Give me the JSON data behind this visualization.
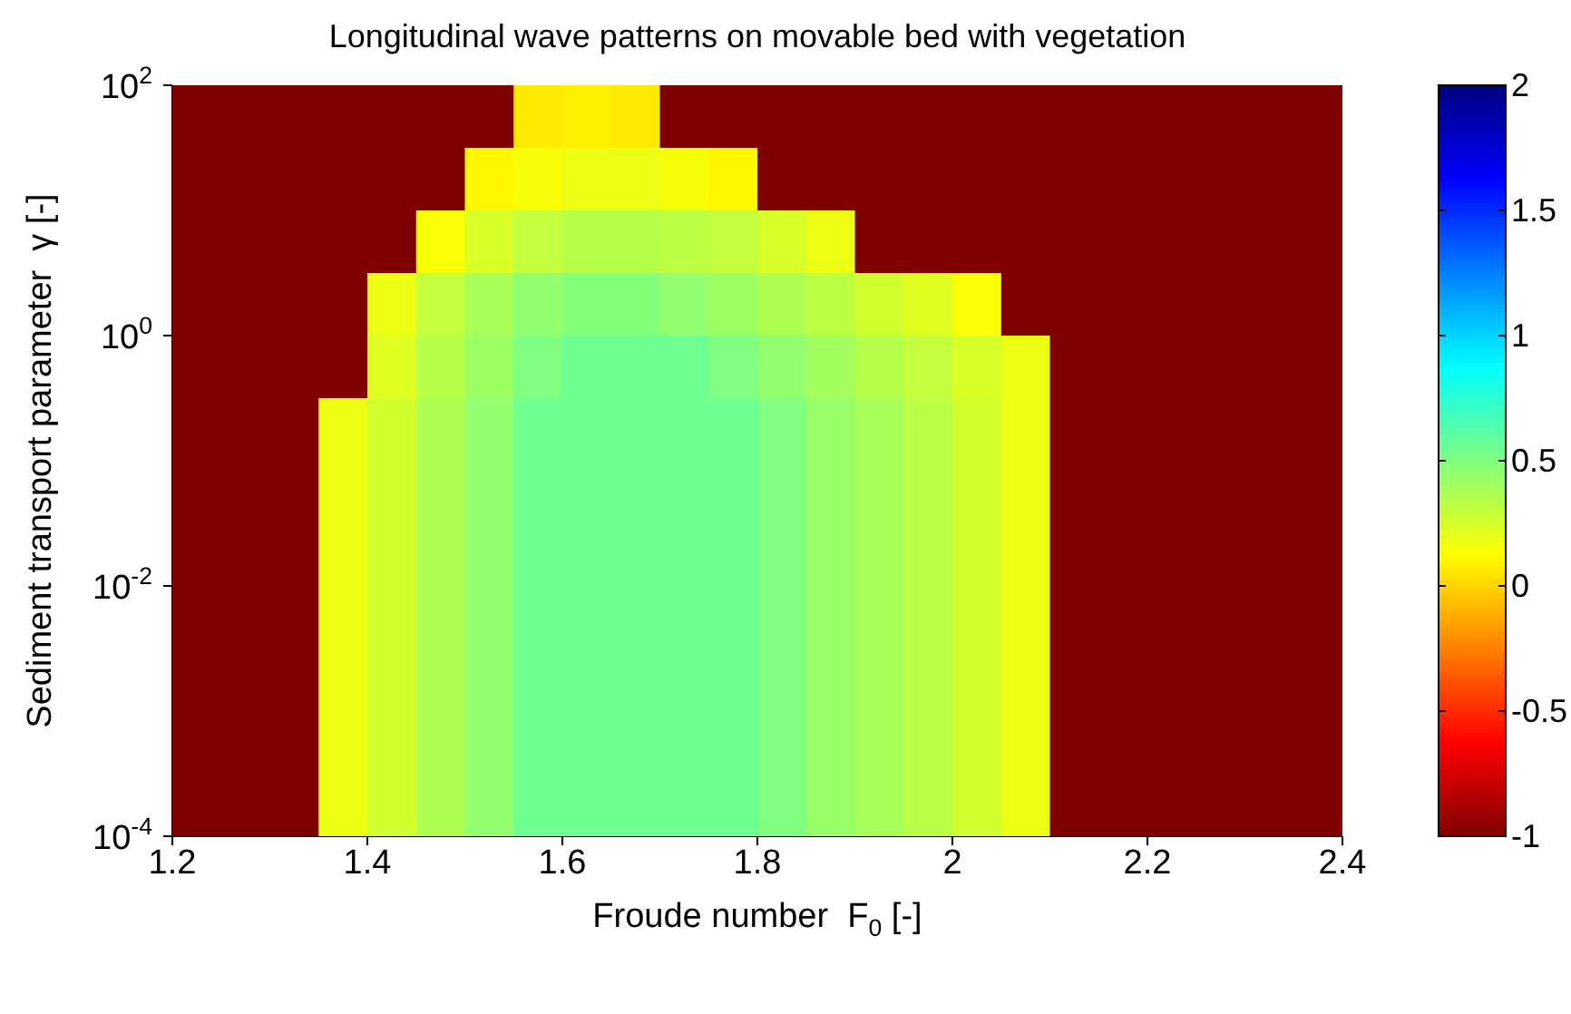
{
  "chart_data": {
    "type": "heatmap",
    "title": "Longitudinal wave patterns on movable bed with vegetation",
    "xlabel": "Froude number  F$_{0}$ [-]",
    "ylabel": "Sediment transport parameter  γ [-]",
    "x": [
      1.225,
      1.275,
      1.325,
      1.375,
      1.425,
      1.475,
      1.525,
      1.575,
      1.625,
      1.675,
      1.725,
      1.775,
      1.825,
      1.875,
      1.925,
      1.975,
      2.025,
      2.075,
      2.125,
      2.175,
      2.225,
      2.275,
      2.325,
      2.375
    ],
    "xlim": [
      1.2,
      2.4
    ],
    "xticks": [
      1.2,
      1.4,
      1.6,
      1.8,
      2,
      2.2,
      2.4
    ],
    "ylim": [
      0.0001,
      100
    ],
    "yticks": [
      {
        "value": 0.0001,
        "label": "10$^{-4}$"
      },
      {
        "value": 0.01,
        "label": "10$^{-2}$"
      },
      {
        "value": 1,
        "label": "10$^{0}$"
      },
      {
        "value": 100,
        "label": "10$^{2}$"
      }
    ],
    "log": "y",
    "clim": [
      -1,
      2
    ],
    "cticks": [
      -1,
      -0.5,
      0,
      0.5,
      1,
      1.5,
      2
    ],
    "cells": [
      [
        -1,
        -1,
        -1,
        -1,
        -1,
        -1,
        -1,
        0.06,
        0.08,
        0.06,
        -1,
        -1,
        -1,
        -1,
        -1,
        -1,
        -1,
        -1,
        -1,
        -1,
        -1,
        -1,
        -1,
        -1
      ],
      [
        -1,
        -1,
        -1,
        -1,
        -1,
        -1,
        0.1,
        0.15,
        0.18,
        0.18,
        0.15,
        0.1,
        -1,
        -1,
        -1,
        -1,
        -1,
        -1,
        -1,
        -1,
        -1,
        -1,
        -1,
        -1
      ],
      [
        -1,
        -1,
        -1,
        -1,
        -1,
        0.14,
        0.24,
        0.3,
        0.34,
        0.34,
        0.32,
        0.3,
        0.24,
        0.18,
        -1,
        -1,
        -1,
        -1,
        -1,
        -1,
        -1,
        -1,
        -1,
        -1
      ],
      [
        -1,
        -1,
        -1,
        -1,
        0.18,
        0.3,
        0.38,
        0.45,
        0.48,
        0.48,
        0.45,
        0.42,
        0.36,
        0.32,
        0.26,
        0.22,
        0.14,
        -1,
        -1,
        -1,
        -1,
        -1,
        -1,
        -1
      ],
      [
        -1,
        -1,
        -1,
        -1,
        0.22,
        0.34,
        0.42,
        0.5,
        0.55,
        0.55,
        0.55,
        0.5,
        0.45,
        0.4,
        0.34,
        0.3,
        0.24,
        0.18,
        -1,
        -1,
        -1,
        -1,
        -1,
        -1
      ],
      [
        -1,
        -1,
        -1,
        0.18,
        0.26,
        0.36,
        0.45,
        0.55,
        0.55,
        0.55,
        0.55,
        0.55,
        0.5,
        0.43,
        0.38,
        0.33,
        0.26,
        0.18,
        -1,
        -1,
        -1,
        -1,
        -1,
        -1
      ],
      [
        -1,
        -1,
        -1,
        0.18,
        0.26,
        0.36,
        0.45,
        0.55,
        0.55,
        0.55,
        0.55,
        0.55,
        0.5,
        0.43,
        0.38,
        0.33,
        0.26,
        0.18,
        -1,
        -1,
        -1,
        -1,
        -1,
        -1
      ],
      [
        -1,
        -1,
        -1,
        0.18,
        0.26,
        0.36,
        0.45,
        0.55,
        0.55,
        0.55,
        0.55,
        0.55,
        0.5,
        0.43,
        0.38,
        0.33,
        0.26,
        0.18,
        -1,
        -1,
        -1,
        -1,
        -1,
        -1
      ],
      [
        -1,
        -1,
        -1,
        0.18,
        0.26,
        0.36,
        0.45,
        0.55,
        0.55,
        0.55,
        0.55,
        0.55,
        0.5,
        0.43,
        0.38,
        0.33,
        0.26,
        0.18,
        -1,
        -1,
        -1,
        -1,
        -1,
        -1
      ],
      [
        -1,
        -1,
        -1,
        0.18,
        0.26,
        0.36,
        0.45,
        0.55,
        0.55,
        0.55,
        0.55,
        0.55,
        0.5,
        0.43,
        0.38,
        0.33,
        0.26,
        0.18,
        -1,
        -1,
        -1,
        -1,
        -1,
        -1
      ],
      [
        -1,
        -1,
        -1,
        0.18,
        0.26,
        0.36,
        0.45,
        0.55,
        0.55,
        0.55,
        0.55,
        0.55,
        0.5,
        0.43,
        0.38,
        0.33,
        0.26,
        0.18,
        -1,
        -1,
        -1,
        -1,
        -1,
        -1
      ],
      [
        -1,
        -1,
        -1,
        0.18,
        0.26,
        0.36,
        0.45,
        0.55,
        0.55,
        0.55,
        0.55,
        0.55,
        0.5,
        0.43,
        0.38,
        0.33,
        0.26,
        0.18,
        -1,
        -1,
        -1,
        -1,
        -1,
        -1
      ]
    ]
  }
}
